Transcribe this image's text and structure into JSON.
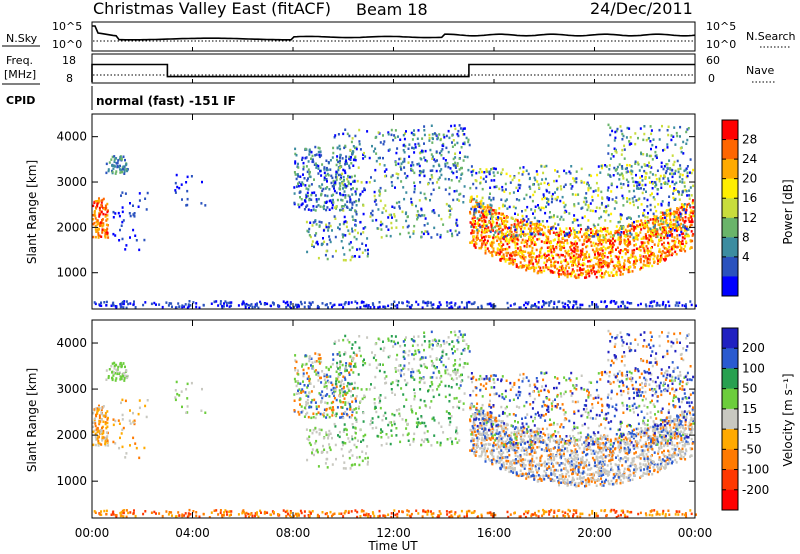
{
  "chart_data": {
    "type": "heatmap",
    "header": {
      "station": "Christmas Valley East (fitACF)",
      "beam": "Beam 18",
      "date": "24/Dec/2011"
    },
    "x_axis": {
      "label": "Time UT",
      "ticks": [
        "00:00",
        "04:00",
        "08:00",
        "12:00",
        "16:00",
        "20:00",
        "00:00"
      ],
      "range_hours": [
        0,
        24
      ]
    },
    "strip_nsky": {
      "left_label": "N.Sky",
      "right_label": "N.Search",
      "left_ticks": [
        "10^5",
        "10^0"
      ],
      "right_ticks": [
        "10^5",
        "10^0"
      ]
    },
    "strip_freq": {
      "left_label_1": "Freq.",
      "left_label_2": "[MHz]",
      "right_label": "Nave",
      "left_ticks": [
        "18",
        "8"
      ],
      "right_ticks": [
        "60",
        "0"
      ],
      "nave_steps": [
        {
          "t0": 0.0,
          "t1": 3.0,
          "level": 0.65
        },
        {
          "t0": 3.0,
          "t1": 15.0,
          "level": 0.2
        },
        {
          "t0": 15.0,
          "t1": 24.0,
          "level": 0.65
        }
      ]
    },
    "strip_cpid": {
      "left_label": "CPID",
      "text": "normal (fast) -151 IF"
    },
    "panel_power": {
      "ylabel": "Slant Range [km]",
      "y_ticks": [
        1000,
        2000,
        3000,
        4000
      ],
      "ylim": [
        200,
        4500
      ],
      "colorbar_label": "Power [dB]",
      "colorbar_ticks": [
        "28",
        "24",
        "20",
        "16",
        "12",
        "8",
        "4"
      ],
      "colors": [
        "#ff0000",
        "#ff6600",
        "#ffaa00",
        "#ffee00",
        "#c8dc3c",
        "#6ab46a",
        "#3c8ca0",
        "#2a52be",
        "#0000ff"
      ]
    },
    "panel_velocity": {
      "ylabel": "Slant Range [km]",
      "y_ticks": [
        1000,
        2000,
        3000,
        4000
      ],
      "ylim": [
        200,
        4500
      ],
      "colorbar_label": "Velocity [m s⁻¹]",
      "colorbar_ticks": [
        "200",
        "100",
        "50",
        "15",
        "-15",
        "-50",
        "-100",
        "-200"
      ],
      "colors": [
        "#2020c0",
        "#2a5ad0",
        "#28a050",
        "#6ccd3c",
        "#c8c8c0",
        "#ffaa00",
        "#ff7a00",
        "#ff3800",
        "#ff0000"
      ]
    }
  }
}
